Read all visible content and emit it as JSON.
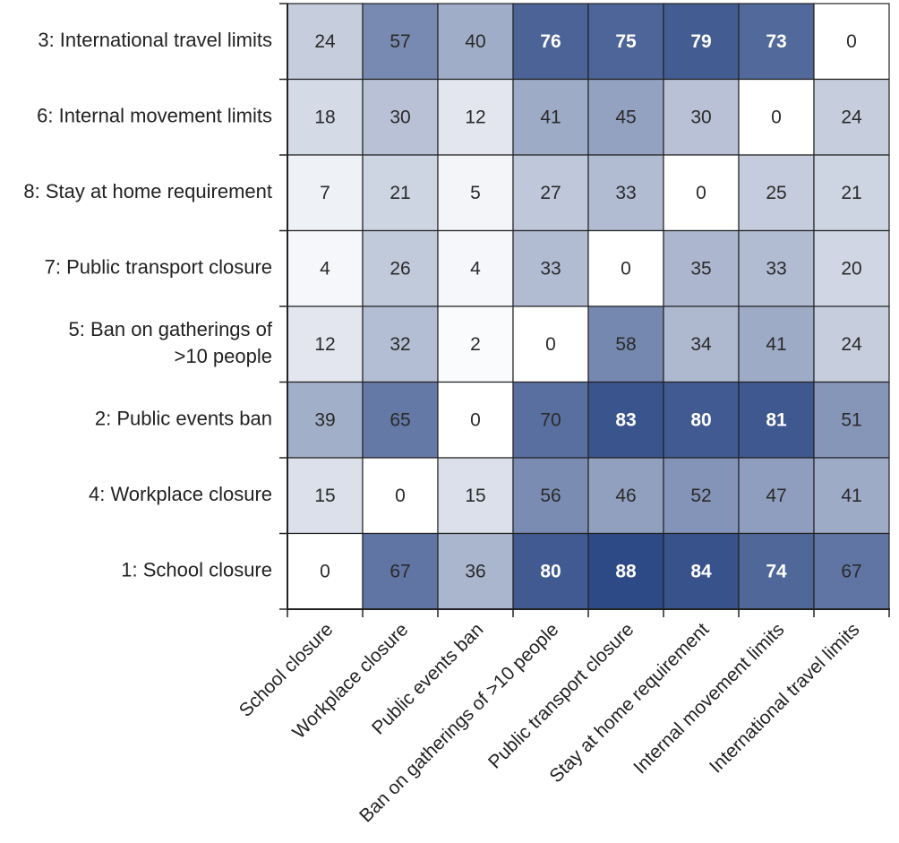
{
  "chart_data": {
    "type": "heatmap",
    "x_categories": [
      "School closure",
      "Workplace closure",
      "Public events ban",
      "Ban on gatherings of >10 people",
      "Public transport closure",
      "Stay at home requirement",
      "Internal movement limits",
      "International travel limits"
    ],
    "y_categories": [
      [
        "3: International travel limits"
      ],
      [
        "6: Internal movement limits"
      ],
      [
        "8: Stay at home requirement"
      ],
      [
        "7: Public transport closure"
      ],
      [
        "5: Ban on gatherings of",
        ">10 people"
      ],
      [
        "2: Public events ban"
      ],
      [
        "4: Workplace closure"
      ],
      [
        "1: School closure"
      ]
    ],
    "values": [
      [
        24,
        57,
        40,
        76,
        75,
        79,
        73,
        0
      ],
      [
        18,
        30,
        12,
        41,
        45,
        30,
        0,
        24
      ],
      [
        7,
        21,
        5,
        27,
        33,
        0,
        25,
        21
      ],
      [
        4,
        26,
        4,
        33,
        0,
        35,
        33,
        20
      ],
      [
        12,
        32,
        2,
        0,
        58,
        34,
        41,
        24
      ],
      [
        39,
        65,
        0,
        70,
        83,
        80,
        81,
        51
      ],
      [
        15,
        0,
        15,
        56,
        46,
        52,
        47,
        41
      ],
      [
        0,
        67,
        36,
        80,
        88,
        84,
        74,
        67
      ]
    ],
    "color_scale": {
      "min": 0,
      "max": 88,
      "low_color": "#ffffff",
      "high_color": "#2e4a86"
    },
    "label_colors": {
      "dark": "#2a2a2a",
      "light": "#ffffff"
    },
    "light_label_threshold": 73,
    "grid": true,
    "legend": "none"
  }
}
